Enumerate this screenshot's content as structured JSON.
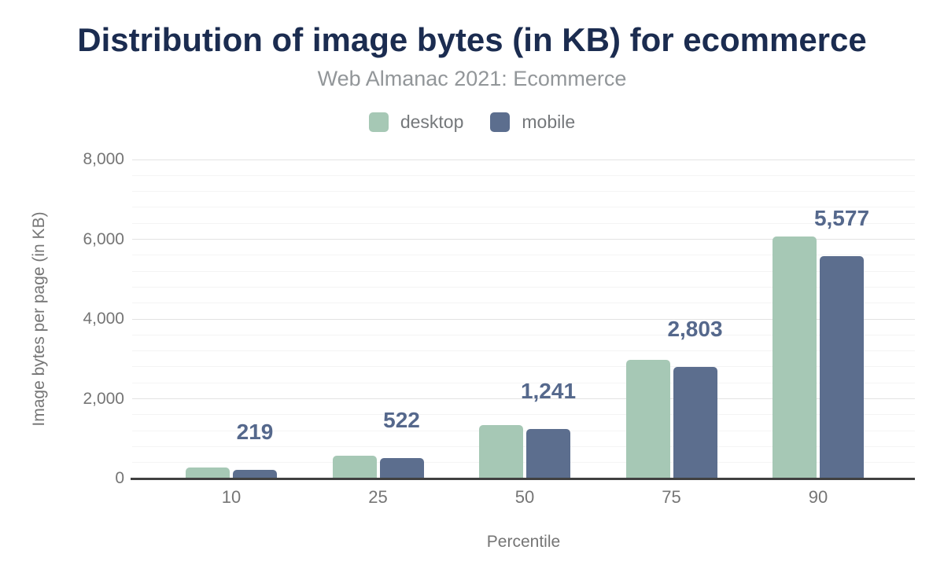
{
  "chart_data": {
    "type": "bar",
    "title": "Distribution of image bytes (in KB) for ecommerce",
    "subtitle": "Web Almanac 2021: Ecommerce",
    "xlabel": "Percentile",
    "ylabel": "Image bytes per page (in KB)",
    "categories": [
      "10",
      "25",
      "50",
      "75",
      "90"
    ],
    "series": [
      {
        "name": "desktop",
        "color": "#a6c8b5",
        "values": [
          270,
          570,
          1335,
          2975,
          6070
        ]
      },
      {
        "name": "mobile",
        "color": "#5c6e8e",
        "values": [
          219,
          522,
          1241,
          2803,
          5577
        ]
      }
    ],
    "data_labels": {
      "series": "mobile",
      "values": [
        "219",
        "522",
        "1,241",
        "2,803",
        "5,577"
      ],
      "color": "#55688c"
    },
    "ylim": [
      0,
      8000
    ],
    "y_ticks": [
      {
        "v": 0,
        "label": "0"
      },
      {
        "v": 2000,
        "label": "2,000"
      },
      {
        "v": 4000,
        "label": "4,000"
      },
      {
        "v": 6000,
        "label": "6,000"
      },
      {
        "v": 8000,
        "label": "8,000"
      }
    ],
    "grid": {
      "minor_every": 400,
      "major_every": 2000,
      "minor_color": "#f4f4f4",
      "major_color": "#e3e3e3"
    },
    "legend_position": "top",
    "colors": {
      "title": "#1b2c50",
      "subtitle": "#929699",
      "tick_text": "#757575",
      "axis_line": "#404040"
    }
  }
}
